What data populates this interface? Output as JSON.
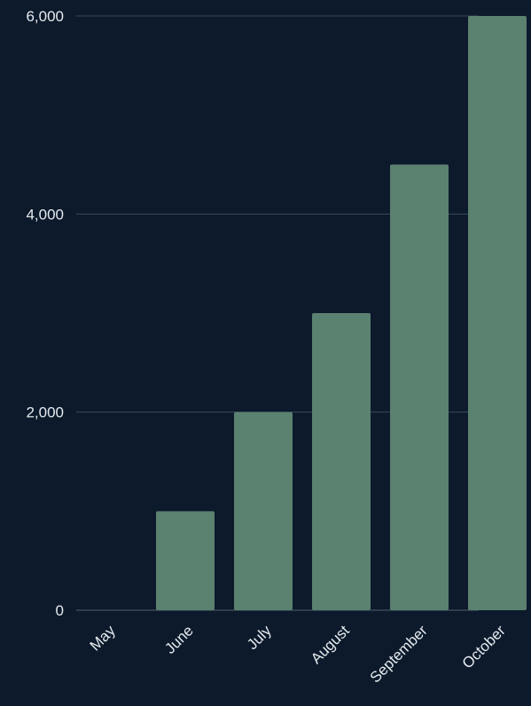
{
  "chart_data": {
    "type": "bar",
    "title": "",
    "xlabel": "",
    "ylabel": "",
    "categories": [
      "May",
      "June",
      "July",
      "August",
      "September",
      "October"
    ],
    "values": [
      0,
      1000,
      2000,
      3000,
      4500,
      6000
    ],
    "ylim": [
      0,
      6000
    ],
    "yticks": [
      0,
      2000,
      4000,
      6000
    ],
    "ytick_labels": [
      "0",
      "2,000",
      "4,000",
      "6,000"
    ],
    "grid": true,
    "legend": "none",
    "colors": {
      "background": "#0c1a2c",
      "bar": "#5b8170",
      "grid": "#3a4a57",
      "text": "#e6eaee"
    }
  }
}
